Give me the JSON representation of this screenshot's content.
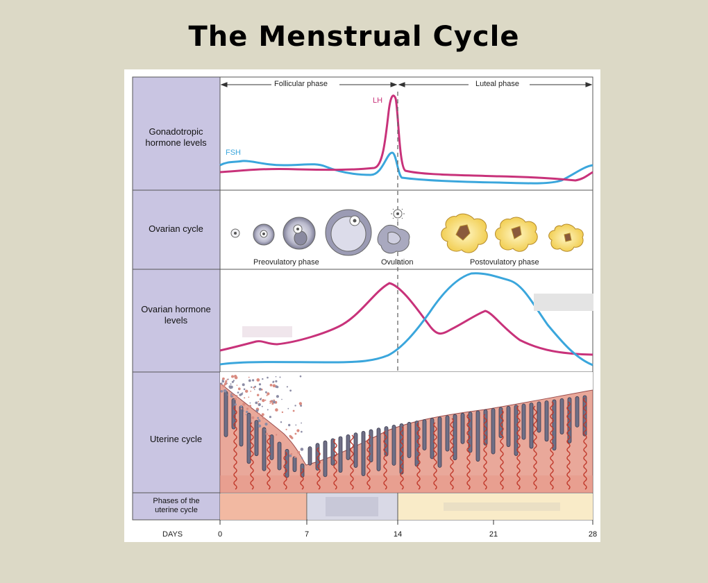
{
  "title": "The Menstrual Cycle",
  "phases_header": {
    "follicular": "Follicular phase",
    "luteal": "Luteal phase"
  },
  "rows": {
    "gonadotropic": "Gonadotropic hormone levels",
    "ovarian_cycle": "Ovarian cycle",
    "ovarian_hormone": "Ovarian hormone levels",
    "uterine_cycle": "Uterine cycle",
    "phases_uterine": "Phases of the uterine cycle",
    "days": "DAYS"
  },
  "curve_labels": {
    "lh": "LH",
    "fsh": "FSH"
  },
  "ovarian_stage_labels": {
    "preovulatory": "Preovulatory phase",
    "ovulation": "Ovulation",
    "postovulatory": "Postovulatory phase"
  },
  "day_ticks": [
    "0",
    "7",
    "14",
    "21",
    "28"
  ],
  "colors": {
    "lh": "#c8327a",
    "fsh": "#3aa6dc",
    "label_panel": "#c9c5e2",
    "menstrual_band": "#f2b9a2",
    "proliferative_band": "#d9d9e6",
    "secretory_band": "#f9ebc8"
  }
}
